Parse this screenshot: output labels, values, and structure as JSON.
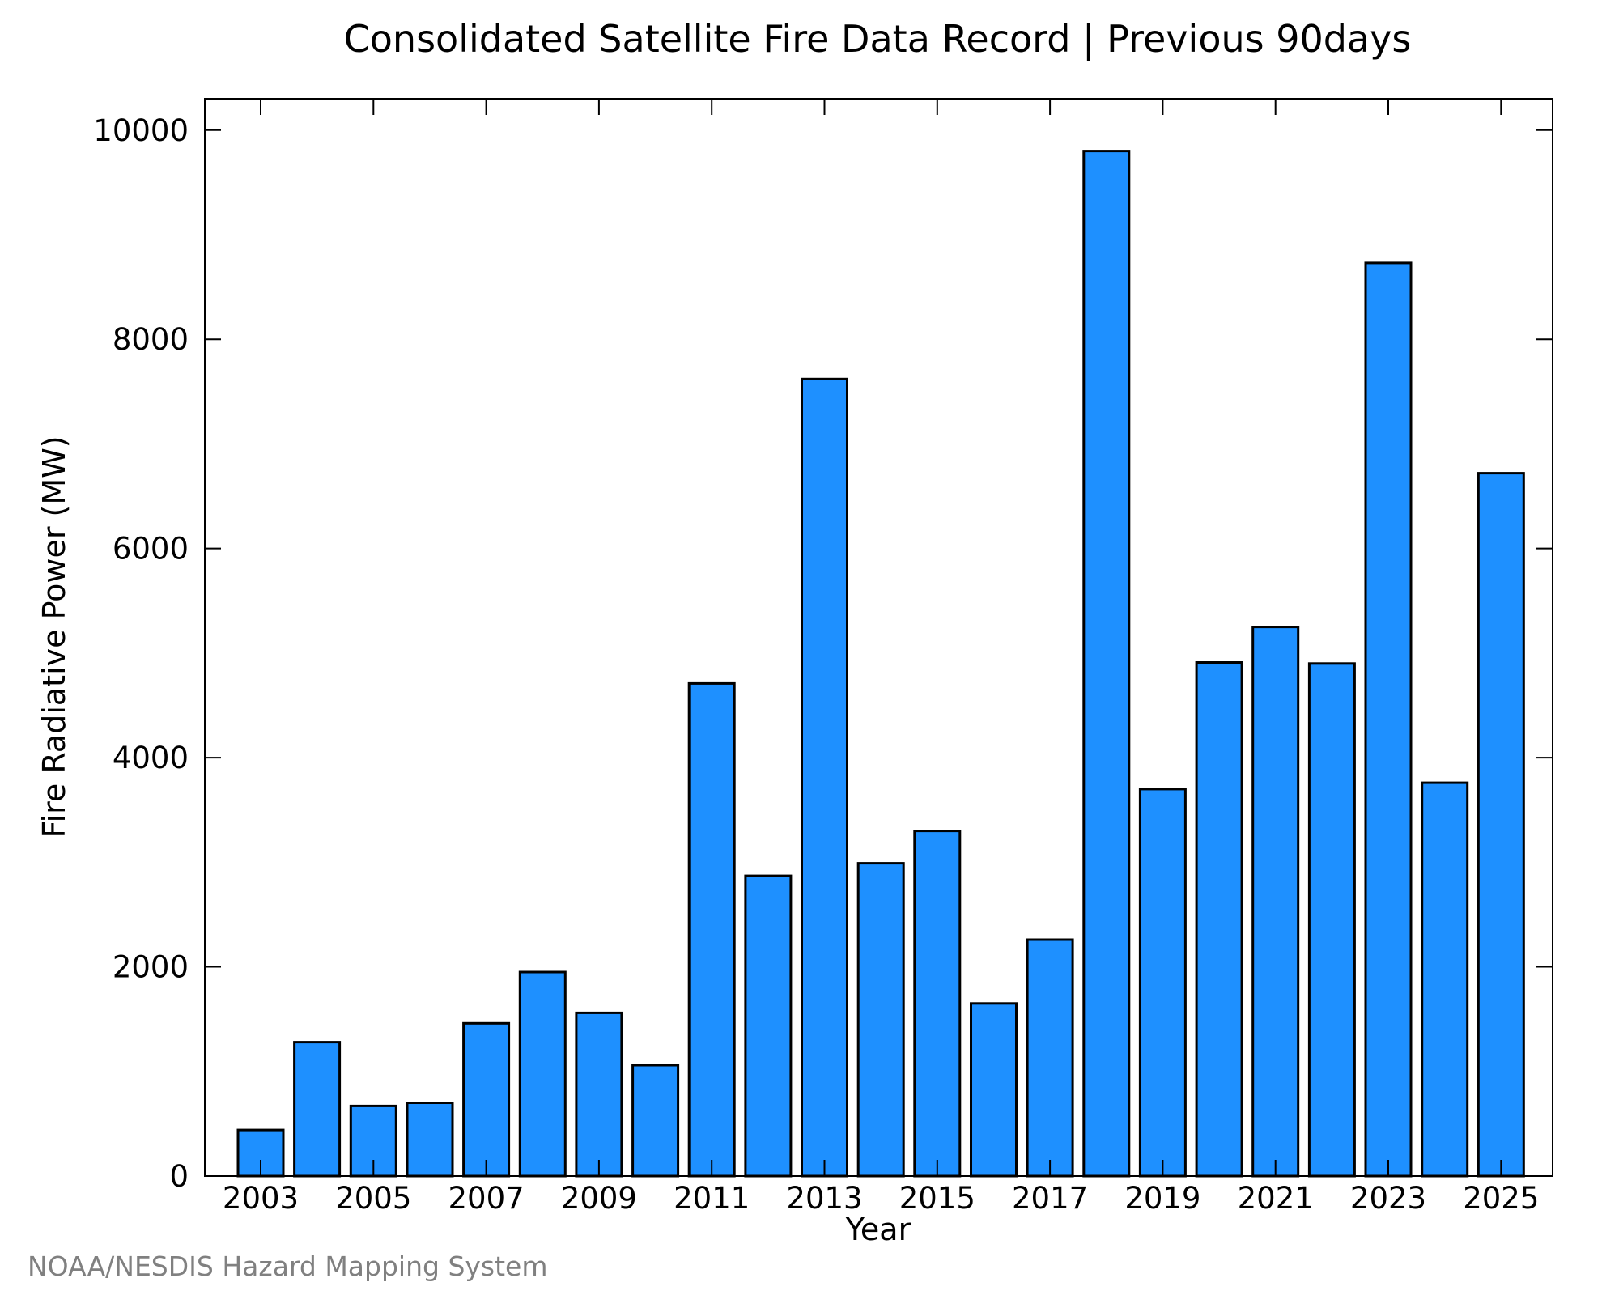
{
  "chart_data": {
    "type": "bar",
    "title": "Consolidated Satellite Fire Data Record | Previous 90days",
    "xlabel": "Year",
    "ylabel": "Fire Radiative Power (MW)",
    "credit": "NOAA/NESDIS Hazard Mapping System",
    "categories": [
      "2003",
      "2004",
      "2005",
      "2006",
      "2007",
      "2008",
      "2009",
      "2010",
      "2011",
      "2012",
      "2013",
      "2014",
      "2015",
      "2016",
      "2017",
      "2018",
      "2019",
      "2020",
      "2021",
      "2022",
      "2023",
      "2024",
      "2025"
    ],
    "values": [
      440,
      1280,
      670,
      700,
      1460,
      1950,
      1560,
      1060,
      4710,
      2870,
      7620,
      2990,
      3300,
      1650,
      2260,
      9800,
      3700,
      4910,
      5250,
      4900,
      8730,
      3760,
      6720
    ],
    "x_tick_labels": [
      "2003",
      "2005",
      "2007",
      "2009",
      "2011",
      "2013",
      "2015",
      "2017",
      "2019",
      "2021",
      "2023",
      "2025"
    ],
    "y_ticks": [
      0,
      2000,
      4000,
      6000,
      8000,
      10000
    ],
    "y_tick_labels": [
      "0",
      "2000",
      "4000",
      "6000",
      "8000",
      "10000"
    ],
    "ylim": [
      0,
      10300
    ],
    "grid": false,
    "bar_color": "#1e90ff",
    "edge_color": "#000000"
  }
}
